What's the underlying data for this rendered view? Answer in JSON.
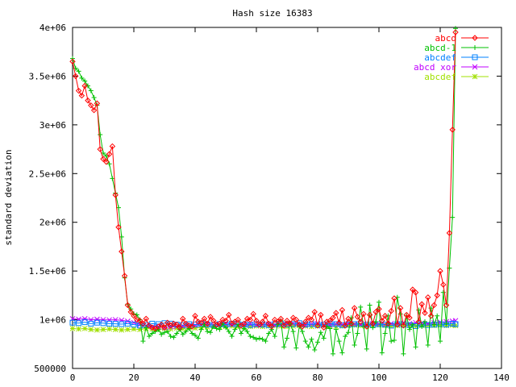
{
  "chart_data": {
    "type": "line",
    "title": "Hash size 16383",
    "xlabel": "",
    "ylabel": "standard deviation",
    "xlim": [
      0,
      140
    ],
    "ylim": [
      500000,
      4000000
    ],
    "xticks": [
      0,
      20,
      40,
      60,
      80,
      100,
      120,
      140
    ],
    "xtick_labels": [
      "0",
      "20",
      "40",
      "60",
      "80",
      "100",
      "120",
      "140"
    ],
    "yticks": [
      500000,
      1000000,
      1500000,
      2000000,
      2500000,
      3000000,
      3500000,
      4000000
    ],
    "ytick_labels": [
      "500000",
      "1e+06",
      "1.5e+06",
      "2e+06",
      "2.5e+06",
      "3e+06",
      "3.5e+06",
      "4e+06"
    ],
    "grid": false,
    "legend_position": "top-right",
    "series": [
      {
        "name": "abcd",
        "color": "#ff0000",
        "marker": "diamond",
        "x": [
          0,
          1,
          2,
          3,
          4,
          5,
          6,
          7,
          8,
          9,
          10,
          11,
          12,
          13,
          14,
          15,
          16,
          17,
          18,
          19,
          20,
          21,
          22,
          23,
          24,
          25,
          26,
          27,
          28,
          29,
          30,
          31,
          32,
          33,
          34,
          35,
          36,
          37,
          38,
          39,
          40,
          41,
          42,
          43,
          44,
          45,
          46,
          47,
          48,
          49,
          50,
          51,
          52,
          53,
          54,
          55,
          56,
          57,
          58,
          59,
          60,
          61,
          62,
          63,
          64,
          65,
          66,
          67,
          68,
          69,
          70,
          71,
          72,
          73,
          74,
          75,
          76,
          77,
          78,
          79,
          80,
          81,
          82,
          83,
          84,
          85,
          86,
          87,
          88,
          89,
          90,
          91,
          92,
          93,
          94,
          95,
          96,
          97,
          98,
          99,
          100,
          101,
          102,
          103,
          104,
          105,
          106,
          107,
          108,
          109,
          110,
          111,
          112,
          113,
          114,
          115,
          116,
          117,
          118,
          119,
          120,
          121,
          122,
          123,
          124,
          125
        ],
        "y": [
          3650000,
          3500000,
          3350000,
          3300000,
          3400000,
          3250000,
          3200000,
          3150000,
          3220000,
          2750000,
          2650000,
          2620000,
          2700000,
          2780000,
          2280000,
          1950000,
          1700000,
          1450000,
          1150000,
          1080000,
          1040000,
          1000000,
          990000,
          960000,
          1010000,
          940000,
          920000,
          910000,
          930000,
          950000,
          920000,
          970000,
          940000,
          960000,
          950000,
          920000,
          1010000,
          960000,
          940000,
          930000,
          1040000,
          980000,
          970000,
          1010000,
          960000,
          1030000,
          990000,
          950000,
          960000,
          1000000,
          990000,
          1050000,
          960000,
          980000,
          1000000,
          940000,
          960000,
          1010000,
          1000000,
          1060000,
          990000,
          950000,
          980000,
          1040000,
          960000,
          930000,
          1000000,
          980000,
          1010000,
          940000,
          990000,
          960000,
          1020000,
          1000000,
          950000,
          930000,
          980000,
          1020000,
          1000000,
          1080000,
          940000,
          1050000,
          920000,
          980000,
          990000,
          1020000,
          1070000,
          970000,
          1100000,
          940000,
          1010000,
          960000,
          1120000,
          1030000,
          980000,
          1060000,
          930000,
          1050000,
          960000,
          1080000,
          1110000,
          990000,
          1040000,
          960000,
          1090000,
          1220000,
          950000,
          1120000,
          940000,
          1050000,
          1020000,
          1310000,
          1280000,
          980000,
          1160000,
          1070000,
          1230000,
          1040000,
          1150000,
          1250000,
          1500000,
          1360000,
          1150000,
          1890000,
          2950000,
          3950000
        ]
      },
      {
        "name": "abcd-1",
        "color": "#00c000",
        "marker": "plus",
        "x": [
          0,
          1,
          2,
          3,
          4,
          5,
          6,
          7,
          8,
          9,
          10,
          11,
          12,
          13,
          14,
          15,
          16,
          17,
          18,
          19,
          20,
          21,
          22,
          23,
          24,
          25,
          26,
          27,
          28,
          29,
          30,
          31,
          32,
          33,
          34,
          35,
          36,
          37,
          38,
          39,
          40,
          41,
          42,
          43,
          44,
          45,
          46,
          47,
          48,
          49,
          50,
          51,
          52,
          53,
          54,
          55,
          56,
          57,
          58,
          59,
          60,
          61,
          62,
          63,
          64,
          65,
          66,
          67,
          68,
          69,
          70,
          71,
          72,
          73,
          74,
          75,
          76,
          77,
          78,
          79,
          80,
          81,
          82,
          83,
          84,
          85,
          86,
          87,
          88,
          89,
          90,
          91,
          92,
          93,
          94,
          95,
          96,
          97,
          98,
          99,
          100,
          101,
          102,
          103,
          104,
          105,
          106,
          107,
          108,
          109,
          110,
          111,
          112,
          113,
          114,
          115,
          116,
          117,
          118,
          119,
          120,
          121,
          122,
          123,
          124,
          125
        ],
        "y": [
          3680000,
          3580000,
          3550000,
          3480000,
          3450000,
          3400000,
          3350000,
          3280000,
          3200000,
          2900000,
          2710000,
          2680000,
          2600000,
          2450000,
          2300000,
          2150000,
          1850000,
          1430000,
          1160000,
          1110000,
          1060000,
          1050000,
          1000000,
          780000,
          920000,
          830000,
          860000,
          880000,
          900000,
          850000,
          870000,
          880000,
          830000,
          820000,
          860000,
          900000,
          850000,
          880000,
          910000,
          860000,
          840000,
          810000,
          900000,
          950000,
          880000,
          870000,
          930000,
          910000,
          900000,
          960000,
          920000,
          880000,
          830000,
          900000,
          950000,
          860000,
          910000,
          880000,
          830000,
          820000,
          800000,
          810000,
          800000,
          780000,
          860000,
          900000,
          830000,
          950000,
          990000,
          720000,
          810000,
          960000,
          880000,
          710000,
          930000,
          880000,
          780000,
          720000,
          800000,
          690000,
          770000,
          870000,
          810000,
          930000,
          910000,
          650000,
          900000,
          780000,
          660000,
          830000,
          870000,
          1020000,
          740000,
          860000,
          1130000,
          930000,
          700000,
          1150000,
          920000,
          980000,
          1180000,
          660000,
          860000,
          1040000,
          780000,
          790000,
          1230000,
          1060000,
          650000,
          1040000,
          900000,
          950000,
          720000,
          1100000,
          930000,
          980000,
          740000,
          1120000,
          950000,
          1040000,
          780000,
          1280000,
          960000,
          1530000,
          2050000,
          3990000
        ]
      },
      {
        "name": "abcdef",
        "color": "#0080ff",
        "marker": "square",
        "x": [
          0,
          2,
          4,
          6,
          8,
          10,
          12,
          14,
          16,
          18,
          20,
          22,
          24,
          26,
          28,
          30,
          32,
          34,
          36,
          38,
          40,
          42,
          44,
          46,
          48,
          50,
          52,
          54,
          56,
          58,
          60,
          62,
          64,
          66,
          68,
          70,
          72,
          74,
          76,
          78,
          80,
          82,
          84,
          86,
          88,
          90,
          92,
          94,
          96,
          98,
          100,
          102,
          104,
          106,
          108,
          110,
          112,
          114,
          116,
          118,
          120,
          122,
          124,
          125
        ],
        "y": [
          970000,
          965000,
          975000,
          960000,
          970000,
          965000,
          960000,
          958000,
          955000,
          960000,
          950000,
          940000,
          945000,
          960000,
          955000,
          965000,
          960000,
          950000,
          945000,
          955000,
          950000,
          960000,
          950000,
          945000,
          955000,
          950000,
          960000,
          955000,
          950000,
          945000,
          955000,
          950000,
          945000,
          955000,
          960000,
          950000,
          955000,
          965000,
          950000,
          955000,
          945000,
          950000,
          960000,
          955000,
          945000,
          950000,
          955000,
          960000,
          950000,
          945000,
          955000,
          950000,
          940000,
          955000,
          950000,
          945000,
          935000,
          950000,
          945000,
          950000,
          955000,
          950000,
          960000,
          955000
        ]
      },
      {
        "name": "abcd xor",
        "color": "#c000ff",
        "marker": "x",
        "x": [
          0,
          2,
          4,
          6,
          8,
          10,
          12,
          14,
          16,
          18,
          20,
          22,
          24,
          26,
          28,
          30,
          32,
          34,
          36,
          38,
          40,
          42,
          44,
          46,
          48,
          50,
          52,
          54,
          56,
          58,
          60,
          62,
          64,
          66,
          68,
          70,
          72,
          74,
          76,
          78,
          80,
          82,
          84,
          86,
          88,
          90,
          92,
          94,
          96,
          98,
          100,
          102,
          104,
          106,
          108,
          110,
          112,
          114,
          116,
          118,
          120,
          122,
          124,
          125
        ],
        "y": [
          1010000,
          1005000,
          1010000,
          1000000,
          1005000,
          1000000,
          998000,
          1000000,
          995000,
          985000,
          970000,
          950000,
          940000,
          925000,
          930000,
          920000,
          925000,
          930000,
          935000,
          940000,
          945000,
          950000,
          955000,
          945000,
          950000,
          955000,
          950000,
          945000,
          950000,
          955000,
          945000,
          950000,
          955000,
          945000,
          950000,
          955000,
          960000,
          950000,
          945000,
          955000,
          960000,
          950000,
          945000,
          955000,
          950000,
          960000,
          955000,
          950000,
          945000,
          960000,
          955000,
          950000,
          960000,
          955000,
          965000,
          960000,
          970000,
          965000,
          960000,
          970000,
          975000,
          980000,
          985000,
          990000
        ]
      },
      {
        "name": "abcdef",
        "color": "#a0e000",
        "marker": "star",
        "x": [
          0,
          2,
          4,
          6,
          8,
          10,
          12,
          14,
          16,
          18,
          20,
          22,
          24,
          26,
          28,
          30,
          32,
          34,
          36,
          38,
          40,
          42,
          44,
          46,
          48,
          50,
          52,
          54,
          56,
          58,
          60,
          62,
          64,
          66,
          68,
          70,
          72,
          74,
          76,
          78,
          80,
          82,
          84,
          86,
          88,
          90,
          92,
          94,
          96,
          98,
          100,
          102,
          104,
          106,
          108,
          110,
          112,
          114,
          116,
          118,
          120,
          122,
          124,
          125
        ],
        "y": [
          910000,
          905000,
          910000,
          900000,
          895000,
          900000,
          905000,
          900000,
          895000,
          900000,
          905000,
          900000,
          910000,
          905000,
          900000,
          910000,
          905000,
          915000,
          910000,
          920000,
          915000,
          920000,
          925000,
          930000,
          925000,
          930000,
          935000,
          930000,
          925000,
          930000,
          935000,
          930000,
          935000,
          940000,
          935000,
          930000,
          935000,
          940000,
          935000,
          930000,
          935000,
          940000,
          935000,
          930000,
          935000,
          940000,
          945000,
          940000,
          935000,
          940000,
          945000,
          940000,
          935000,
          940000,
          945000,
          940000,
          935000,
          940000,
          945000,
          940000,
          945000,
          940000,
          945000,
          940000
        ]
      }
    ]
  }
}
